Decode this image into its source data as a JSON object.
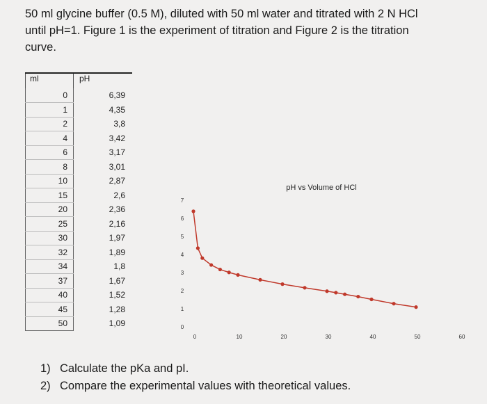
{
  "intro": {
    "line1": "50 ml glycine buffer (0.5 M), diluted with 50 ml water and titrated with 2 N HCl",
    "line2": "until pH=1. Figure 1 is the experiment of titration and Figure 2 is the titration",
    "line3": "curve."
  },
  "table": {
    "headers": [
      "ml",
      "pH"
    ],
    "rows": [
      [
        "0",
        "6,39"
      ],
      [
        "1",
        "4,35"
      ],
      [
        "2",
        "3,8"
      ],
      [
        "4",
        "3,42"
      ],
      [
        "6",
        "3,17"
      ],
      [
        "8",
        "3,01"
      ],
      [
        "10",
        "2,87"
      ],
      [
        "15",
        "2,6"
      ],
      [
        "20",
        "2,36"
      ],
      [
        "25",
        "2,16"
      ],
      [
        "30",
        "1,97"
      ],
      [
        "32",
        "1,89"
      ],
      [
        "34",
        "1,8"
      ],
      [
        "37",
        "1,67"
      ],
      [
        "40",
        "1,52"
      ],
      [
        "45",
        "1,28"
      ],
      [
        "50",
        "1,09"
      ]
    ]
  },
  "chart_data": {
    "type": "line",
    "title": "pH vs Volume of HCl",
    "xlabel": "",
    "ylabel": "",
    "xlim": [
      0,
      60
    ],
    "ylim": [
      0,
      7
    ],
    "x_ticks": [
      "0",
      "10",
      "20",
      "30",
      "40",
      "50",
      "60"
    ],
    "y_ticks": [
      "0",
      "1",
      "2",
      "3",
      "4",
      "5",
      "6",
      "7"
    ],
    "grid": false,
    "color": "#c0392b",
    "x": [
      0,
      1,
      2,
      4,
      6,
      8,
      10,
      15,
      20,
      25,
      30,
      32,
      34,
      37,
      40,
      45,
      50
    ],
    "y": [
      6.39,
      4.35,
      3.8,
      3.42,
      3.17,
      3.01,
      2.87,
      2.6,
      2.36,
      2.16,
      1.97,
      1.89,
      1.8,
      1.67,
      1.52,
      1.28,
      1.09
    ]
  },
  "questions": [
    {
      "num": "1)",
      "text": "Calculate the pKa and pI."
    },
    {
      "num": "2)",
      "text": "Compare the experimental values with theoretical values."
    }
  ]
}
